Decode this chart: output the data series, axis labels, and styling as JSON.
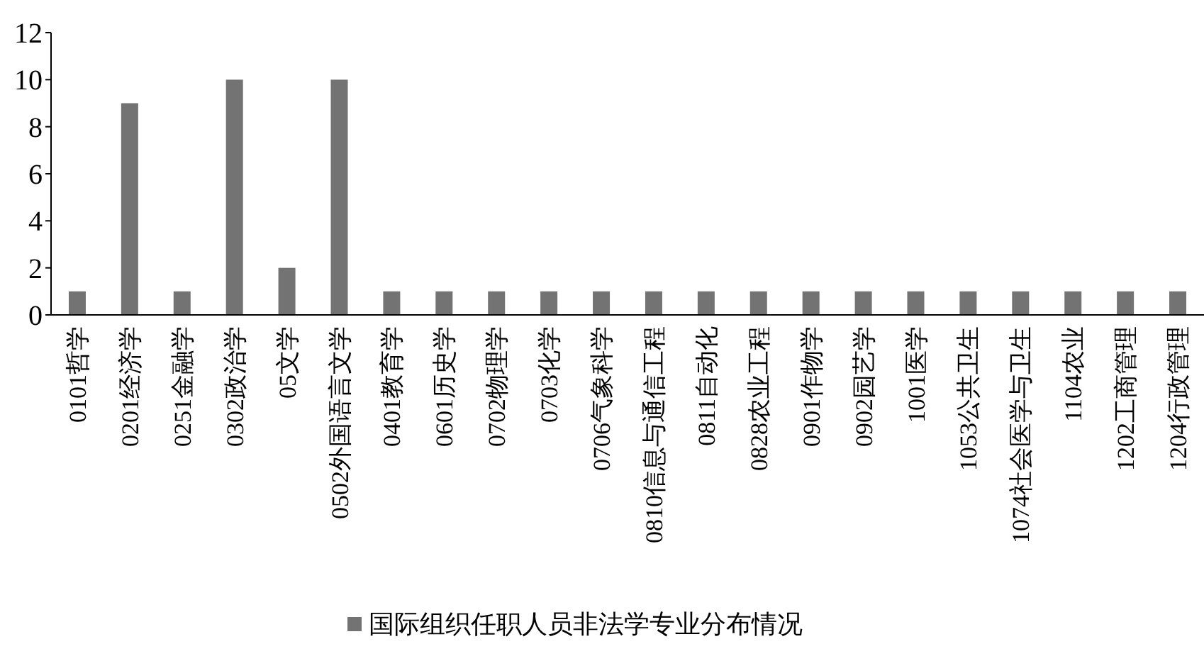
{
  "chart_data": {
    "type": "bar",
    "categories": [
      "0101哲学",
      "0201经济学",
      "0251金融学",
      "0302政治学",
      "05文学",
      "0502外国语言文学",
      "0401教育学",
      "0601历史学",
      "0702物理学",
      "0703化学",
      "0706气象科学",
      "0810信息与通信工程",
      "0811自动化",
      "0828农业工程",
      "0901作物学",
      "0902园艺学",
      "1001医学",
      "1053公共卫生",
      "1074社会医学与卫生",
      "1104农业",
      "1202工商管理",
      "1204行政管理"
    ],
    "series": [
      {
        "name": "国际组织任职人员非法学专业分布情况",
        "color": "#737373",
        "values": [
          1,
          9,
          1,
          10,
          2,
          10,
          1,
          1,
          1,
          1,
          1,
          1,
          1,
          1,
          1,
          1,
          1,
          1,
          1,
          1,
          1,
          1
        ]
      }
    ],
    "ylim": [
      0,
      12
    ],
    "yticks": [
      0,
      2,
      4,
      6,
      8,
      10,
      12
    ],
    "legend": "bottom"
  }
}
